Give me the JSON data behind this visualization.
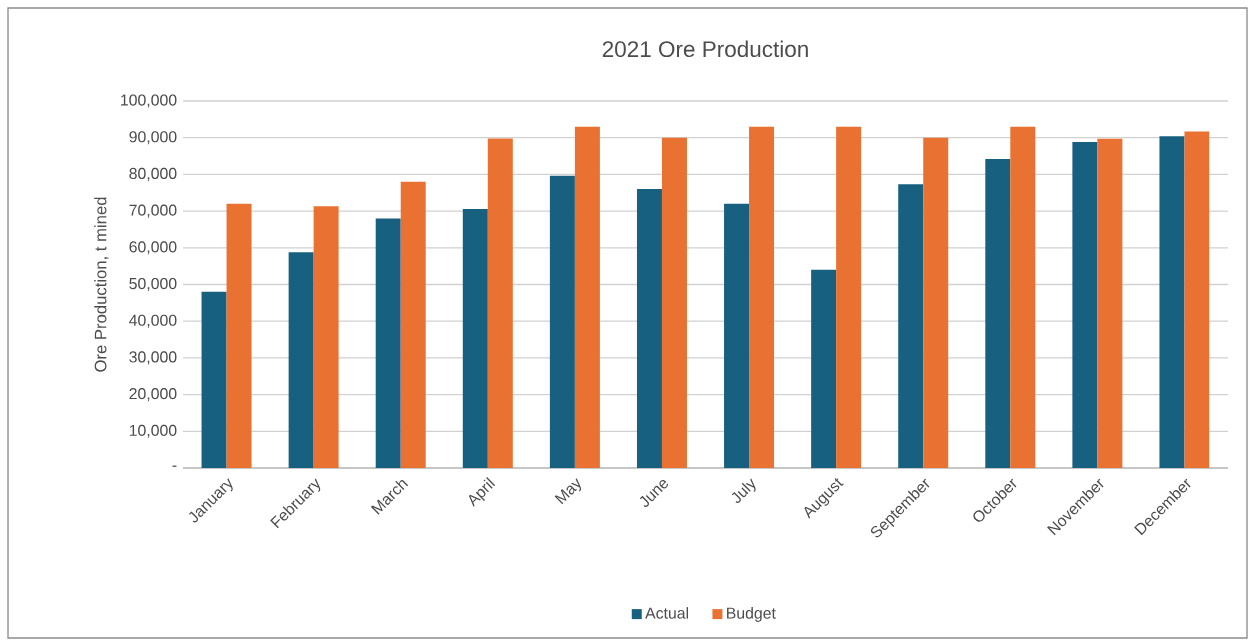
{
  "chart_data": {
    "type": "bar",
    "title": "2021 Ore Production",
    "ylabel": "Ore Production, t mined",
    "categories": [
      "January",
      "February",
      "March",
      "April",
      "May",
      "June",
      "July",
      "August",
      "September",
      "October",
      "November",
      "December"
    ],
    "series": [
      {
        "name": "Actual",
        "color": "#18607f",
        "values": [
          48000,
          58800,
          68000,
          70600,
          79600,
          76000,
          72000,
          54000,
          77300,
          84200,
          88800,
          90400
        ]
      },
      {
        "name": "Budget",
        "color": "#e97132",
        "values": [
          72000,
          71300,
          78000,
          89800,
          93000,
          90000,
          93000,
          93000,
          90000,
          93000,
          89700,
          91700
        ]
      }
    ],
    "ylim": [
      0,
      100000
    ],
    "yticks": [
      {
        "value": 0,
        "label": "-"
      },
      {
        "value": 10000,
        "label": "10,000"
      },
      {
        "value": 20000,
        "label": "20,000"
      },
      {
        "value": 30000,
        "label": "30,000"
      },
      {
        "value": 40000,
        "label": "40,000"
      },
      {
        "value": 50000,
        "label": "50,000"
      },
      {
        "value": 60000,
        "label": "60,000"
      },
      {
        "value": 70000,
        "label": "70,000"
      },
      {
        "value": 80000,
        "label": "80,000"
      },
      {
        "value": 90000,
        "label": "90,000"
      },
      {
        "value": 100000,
        "label": "100,000"
      }
    ],
    "grid": "y",
    "legend": "bottom"
  }
}
